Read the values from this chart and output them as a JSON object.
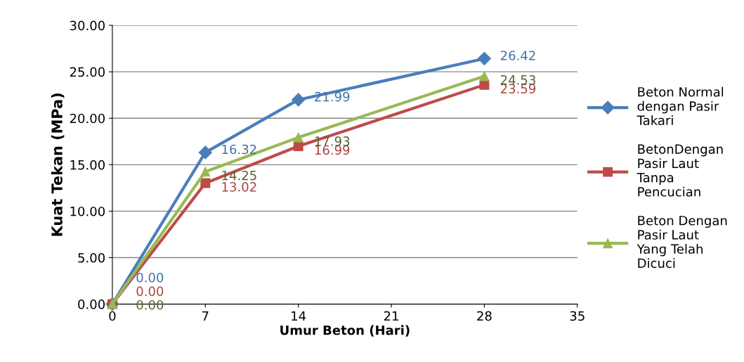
{
  "chart_data": {
    "type": "line",
    "xlabel": "Umur Beton (Hari)",
    "ylabel": "Kuat Tekan (MPa)",
    "x": [
      0,
      7,
      14,
      28
    ],
    "series": [
      {
        "name": "Beton Normal dengan Pasir Takari",
        "color": "#4a7ebb",
        "marker": "diamond",
        "values": [
          0,
          16.32,
          21.99,
          26.42
        ],
        "value_labels": [
          "0.00",
          "16.32",
          "21.99",
          "26.42"
        ]
      },
      {
        "name": "BetonDengan Pasir Laut Tanpa Pencucian",
        "color": "#be4b48",
        "marker": "square",
        "values": [
          0,
          13.02,
          16.99,
          23.59
        ],
        "value_labels": [
          "0.00",
          "13.02",
          "16.99",
          "23.59"
        ]
      },
      {
        "name": "Beton Dengan Pasir Laut Yang Telah Dicuci",
        "color": "#98b954",
        "marker": "triangle",
        "values": [
          0,
          14.25,
          17.93,
          24.53
        ],
        "value_labels": [
          "0.00",
          "14.25",
          "17.93",
          "24.53"
        ]
      }
    ],
    "xlim": [
      0,
      35
    ],
    "xticks": [
      0,
      7,
      14,
      21,
      28,
      35
    ],
    "ylim": [
      0,
      30
    ],
    "yticks": [
      {
        "value": 0,
        "label": "0.00"
      },
      {
        "value": 5,
        "label": "5.00"
      },
      {
        "value": 10,
        "label": "10.00"
      },
      {
        "value": 15,
        "label": "15.00"
      },
      {
        "value": 20,
        "label": "20.00"
      },
      {
        "value": 25,
        "label": "25.00"
      },
      {
        "value": 30,
        "label": "30.00"
      }
    ],
    "grid": "y",
    "legend": "right"
  }
}
